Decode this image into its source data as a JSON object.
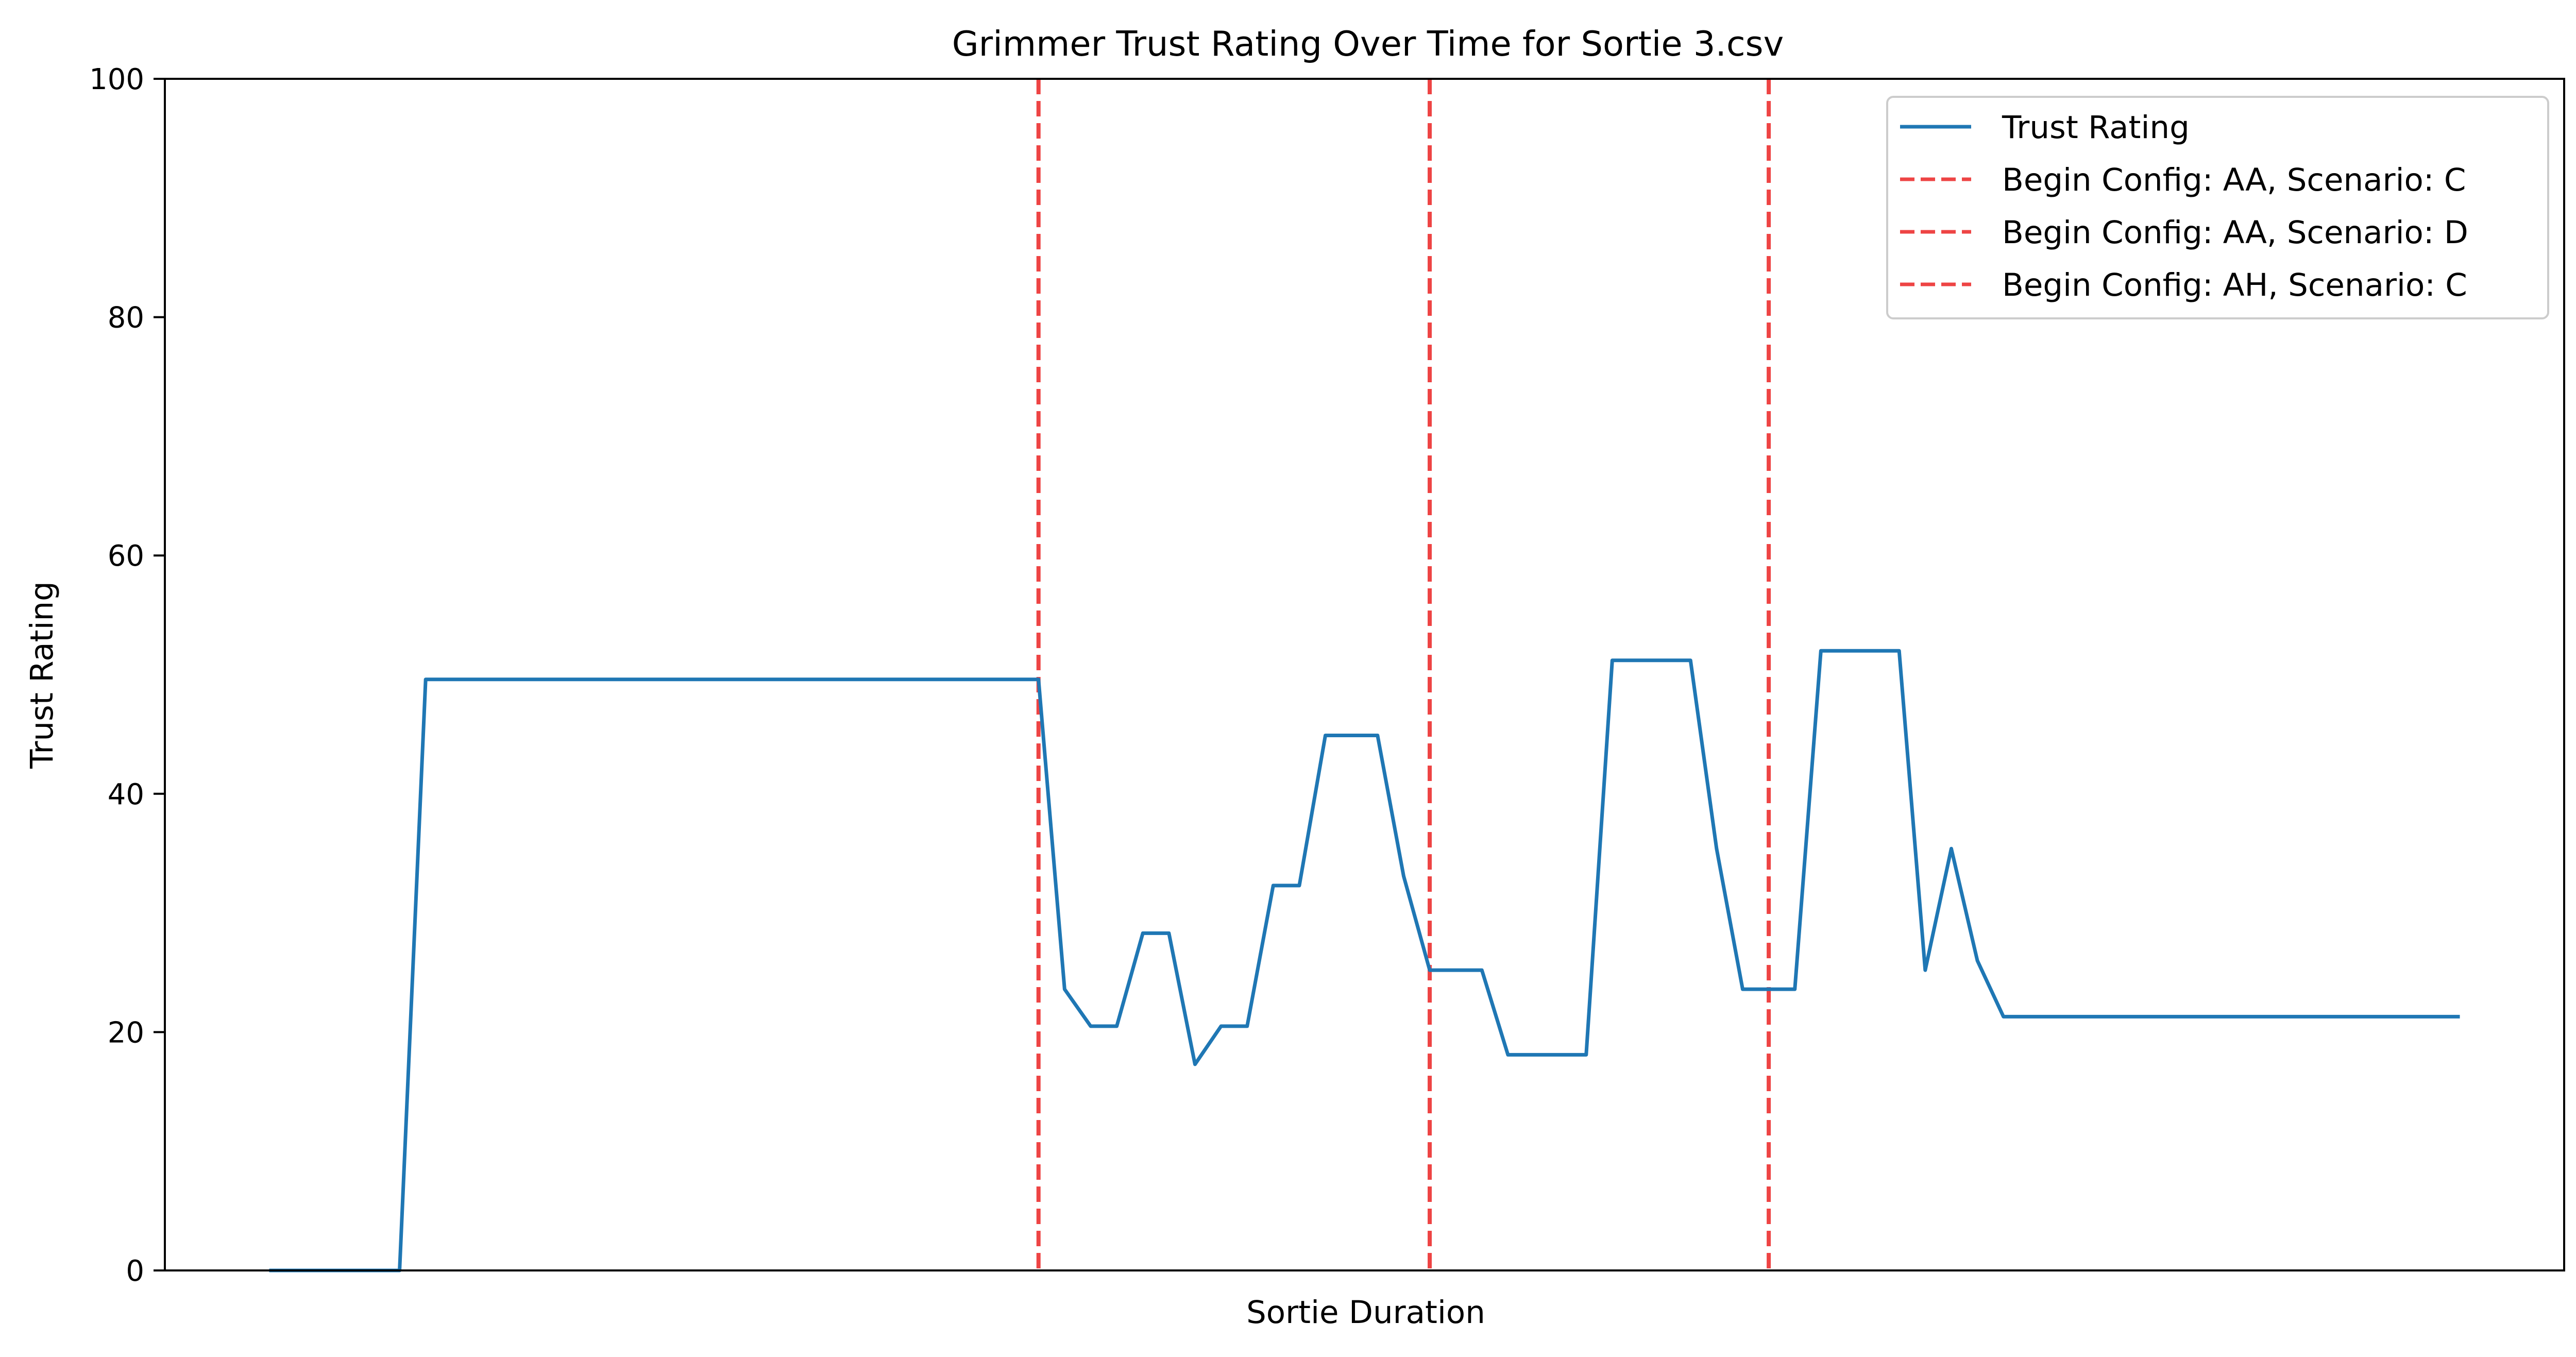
{
  "chart_data": {
    "type": "line",
    "title": "Grimmer Trust Rating Over Time for Sortie 3.csv",
    "xlabel": "Sortie Duration",
    "ylabel": "Trust Rating",
    "xlim": [
      0,
      92
    ],
    "ylim": [
      0,
      100
    ],
    "yticks": [
      0,
      20,
      40,
      60,
      80,
      100
    ],
    "ytick_labels": [
      "0",
      "20",
      "40",
      "60",
      "80",
      "100"
    ],
    "grid": false,
    "legend_position": "top-right",
    "series": [
      {
        "name": "Trust Rating",
        "color": "#1f77b4",
        "x": [
          4,
          9,
          10,
          33.5,
          34.5,
          35.5,
          36.5,
          37.5,
          38.5,
          39.5,
          40.5,
          41.5,
          42.5,
          43.5,
          44.5,
          45.5,
          46.5,
          47.5,
          48.5,
          49.5,
          50.5,
          51.5,
          52.5,
          53.5,
          54.5,
          55.5,
          56.5,
          57.5,
          58.5,
          59.5,
          60.5,
          61.5,
          62.5,
          63.5,
          64.5,
          65.5,
          66.5,
          67.5,
          68.5,
          69.5,
          70.5,
          71.5,
          72.5,
          73.5,
          74.5,
          75.5,
          88
        ],
        "y": [
          0,
          0,
          49.6,
          49.6,
          23.6,
          20.5,
          20.5,
          28.3,
          28.3,
          17.3,
          20.5,
          20.5,
          32.3,
          32.3,
          44.9,
          44.9,
          44.9,
          33.1,
          25.2,
          25.2,
          25.2,
          18.1,
          18.1,
          18.1,
          18.1,
          51.2,
          51.2,
          51.2,
          51.2,
          35.4,
          23.6,
          23.6,
          23.6,
          52.0,
          52.0,
          52.0,
          52.0,
          25.2,
          35.4,
          26.0,
          21.3,
          21.3,
          21.3,
          21.3,
          21.3,
          21.3,
          21.3
        ]
      }
    ],
    "vlines": [
      {
        "name": "Begin Config: AA, Scenario: C",
        "x": 33.5,
        "color": "#ee4444",
        "style": "dashed"
      },
      {
        "name": "Begin Config: AA, Scenario: D",
        "x": 48.5,
        "color": "#ee4444",
        "style": "dashed"
      },
      {
        "name": "Begin Config: AH, Scenario: C",
        "x": 61.5,
        "color": "#ee4444",
        "style": "dashed"
      }
    ]
  }
}
